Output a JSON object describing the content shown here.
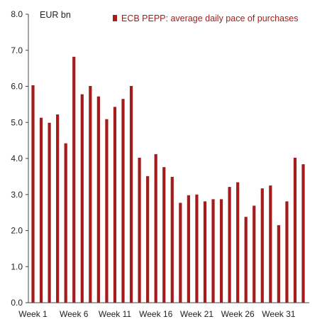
{
  "chart_data": {
    "type": "bar",
    "title": "",
    "unit_label": "EUR bn",
    "xlabel": "",
    "ylabel": "",
    "ylim": [
      0,
      8
    ],
    "yticks": [
      "0.0",
      "1.0",
      "2.0",
      "3.0",
      "4.0",
      "5.0",
      "6.0",
      "7.0",
      "8.0"
    ],
    "grid": false,
    "legend_position": "top",
    "bar_color": "#a51c1c",
    "legend_text_color": "#a51c1c",
    "categories": [
      "Week 1",
      "Week 2",
      "Week 3",
      "Week 4",
      "Week 5",
      "Week 6",
      "Week 7",
      "Week 8",
      "Week 9",
      "Week 10",
      "Week 11",
      "Week 12",
      "Week 13",
      "Week 14",
      "Week 15",
      "Week 16",
      "Week 17",
      "Week 18",
      "Week 19",
      "Week 20",
      "Week 21",
      "Week 22",
      "Week 23",
      "Week 24",
      "Week 25",
      "Week 26",
      "Week 27",
      "Week 28",
      "Week 29",
      "Week 30",
      "Week 31",
      "Week 32",
      "Week 33",
      "Week 34"
    ],
    "xtick_labels": [
      "Week 1",
      "Week 6",
      "Week 11",
      "Week 16",
      "Week 21",
      "Week 26",
      "Week 31"
    ],
    "xtick_indices": [
      0,
      5,
      10,
      15,
      20,
      25,
      30
    ],
    "series": [
      {
        "name": "ECB PEPP: average daily pace of purchases",
        "values": [
          6.03,
          5.13,
          4.99,
          5.22,
          4.42,
          6.82,
          5.78,
          6.01,
          5.72,
          5.09,
          5.43,
          5.65,
          6.01,
          4.02,
          3.51,
          4.12,
          3.76,
          3.49,
          2.77,
          2.98,
          3.0,
          2.81,
          2.87,
          2.87,
          3.21,
          3.34,
          2.38,
          2.69,
          3.17,
          3.25,
          2.15,
          2.81,
          4.02,
          3.84
        ]
      }
    ]
  }
}
